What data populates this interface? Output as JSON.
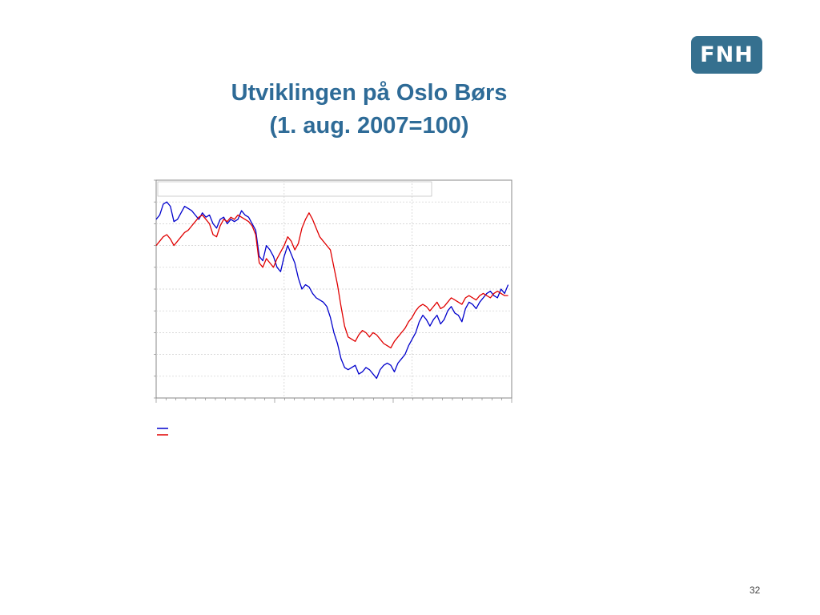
{
  "logo": {
    "text": "FNH"
  },
  "slide": {
    "title_line1": "Utviklingen på Oslo Børs",
    "title_line2": "(1. aug. 2007=100)",
    "page_number": "32"
  },
  "chart_data": {
    "type": "line",
    "title": "",
    "xlabel": "",
    "ylabel": "",
    "ylim": [
      0,
      100
    ],
    "xlim": [
      0,
      100
    ],
    "grid": true,
    "legend_position": "bottom-left",
    "colors": {
      "series_a": "#0000cc",
      "series_b": "#e00000"
    },
    "series": [
      {
        "color": "#0000cc",
        "x": [
          0,
          1,
          2,
          3,
          4,
          5,
          6,
          7,
          8,
          9,
          10,
          11,
          12,
          13,
          14,
          15,
          16,
          17,
          18,
          19,
          20,
          21,
          22,
          23,
          24,
          25,
          26,
          27,
          28,
          29,
          30,
          31,
          32,
          33,
          34,
          35,
          36,
          37,
          38,
          39,
          40,
          41,
          42,
          43,
          44,
          45,
          46,
          47,
          48,
          49,
          50,
          51,
          52,
          53,
          54,
          55,
          56,
          57,
          58,
          59,
          60,
          61,
          62,
          63,
          64,
          65,
          66,
          67,
          68,
          69,
          70,
          71,
          72,
          73,
          74,
          75,
          76,
          77,
          78,
          79,
          80,
          81,
          82,
          83,
          84,
          85,
          86,
          87,
          88,
          89,
          90,
          91,
          92,
          93,
          94,
          95,
          96,
          97,
          98,
          99
        ],
        "values": [
          82,
          84,
          89,
          90,
          88,
          81,
          82,
          85,
          88,
          87,
          86,
          84,
          82,
          85,
          83,
          84,
          80,
          78,
          82,
          83,
          80,
          82,
          81,
          82,
          86,
          84,
          83,
          80,
          77,
          65,
          63,
          70,
          68,
          65,
          60,
          58,
          65,
          70,
          66,
          62,
          55,
          50,
          52,
          51,
          48,
          46,
          45,
          44,
          42,
          37,
          30,
          25,
          18,
          14,
          13,
          14,
          15,
          11,
          12,
          14,
          13,
          11,
          9,
          13,
          15,
          16,
          15,
          12,
          16,
          18,
          20,
          24,
          27,
          30,
          35,
          38,
          36,
          33,
          36,
          38,
          34,
          36,
          40,
          42,
          39,
          38,
          35,
          41,
          44,
          43,
          41,
          44,
          46,
          48,
          49,
          47,
          46,
          50,
          48,
          52
        ]
      },
      {
        "color": "#e00000",
        "x": [
          0,
          1,
          2,
          3,
          4,
          5,
          6,
          7,
          8,
          9,
          10,
          11,
          12,
          13,
          14,
          15,
          16,
          17,
          18,
          19,
          20,
          21,
          22,
          23,
          24,
          25,
          26,
          27,
          28,
          29,
          30,
          31,
          32,
          33,
          34,
          35,
          36,
          37,
          38,
          39,
          40,
          41,
          42,
          43,
          44,
          45,
          46,
          47,
          48,
          49,
          50,
          51,
          52,
          53,
          54,
          55,
          56,
          57,
          58,
          59,
          60,
          61,
          62,
          63,
          64,
          65,
          66,
          67,
          68,
          69,
          70,
          71,
          72,
          73,
          74,
          75,
          76,
          77,
          78,
          79,
          80,
          81,
          82,
          83,
          84,
          85,
          86,
          87,
          88,
          89,
          90,
          91,
          92,
          93,
          94,
          95,
          96,
          97,
          98,
          99
        ],
        "values": [
          70,
          72,
          74,
          75,
          73,
          70,
          72,
          74,
          76,
          77,
          79,
          81,
          83,
          84,
          82,
          80,
          75,
          74,
          79,
          82,
          81,
          83,
          82,
          84,
          83,
          82,
          81,
          79,
          75,
          62,
          60,
          64,
          62,
          60,
          64,
          67,
          70,
          74,
          72,
          68,
          71,
          78,
          82,
          85,
          82,
          78,
          74,
          72,
          70,
          68,
          60,
          52,
          42,
          33,
          28,
          27,
          26,
          29,
          31,
          30,
          28,
          30,
          29,
          27,
          25,
          24,
          23,
          26,
          28,
          30,
          32,
          35,
          37,
          40,
          42,
          43,
          42,
          40,
          42,
          44,
          41,
          42,
          44,
          46,
          45,
          44,
          43,
          46,
          47,
          46,
          45,
          47,
          48,
          47,
          46,
          48,
          49,
          48,
          47,
          47
        ]
      }
    ]
  }
}
